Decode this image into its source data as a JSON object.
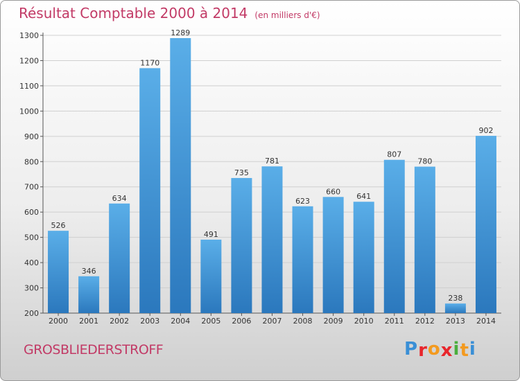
{
  "header": {
    "title": "Résultat Comptable 2000 à 2014",
    "subtitle": "(en milliers d'€)"
  },
  "commune": "GROSBLIEDERSTROFF",
  "logo": {
    "letters": [
      "P",
      "r",
      "o",
      "x",
      "i",
      "t",
      "i"
    ],
    "colors": [
      "#3a8fd6",
      "#e8262c",
      "#f39a1f",
      "#e8262c",
      "#4aae3d",
      "#f39a1f",
      "#3a8fd6"
    ]
  },
  "chart_data": {
    "type": "bar",
    "categories": [
      "2000",
      "2001",
      "2002",
      "2003",
      "2004",
      "2005",
      "2006",
      "2007",
      "2008",
      "2009",
      "2010",
      "2011",
      "2012",
      "2013",
      "2014"
    ],
    "values": [
      526,
      346,
      634,
      1170,
      1289,
      491,
      735,
      781,
      623,
      660,
      641,
      807,
      780,
      238,
      902
    ],
    "ylim": [
      200,
      1300
    ],
    "yticks": [
      200,
      300,
      400,
      500,
      600,
      700,
      800,
      900,
      1000,
      1100,
      1200,
      1300
    ],
    "grid": true,
    "bar_color_top": "#5aaee8",
    "bar_color_bottom": "#2b78bd"
  }
}
